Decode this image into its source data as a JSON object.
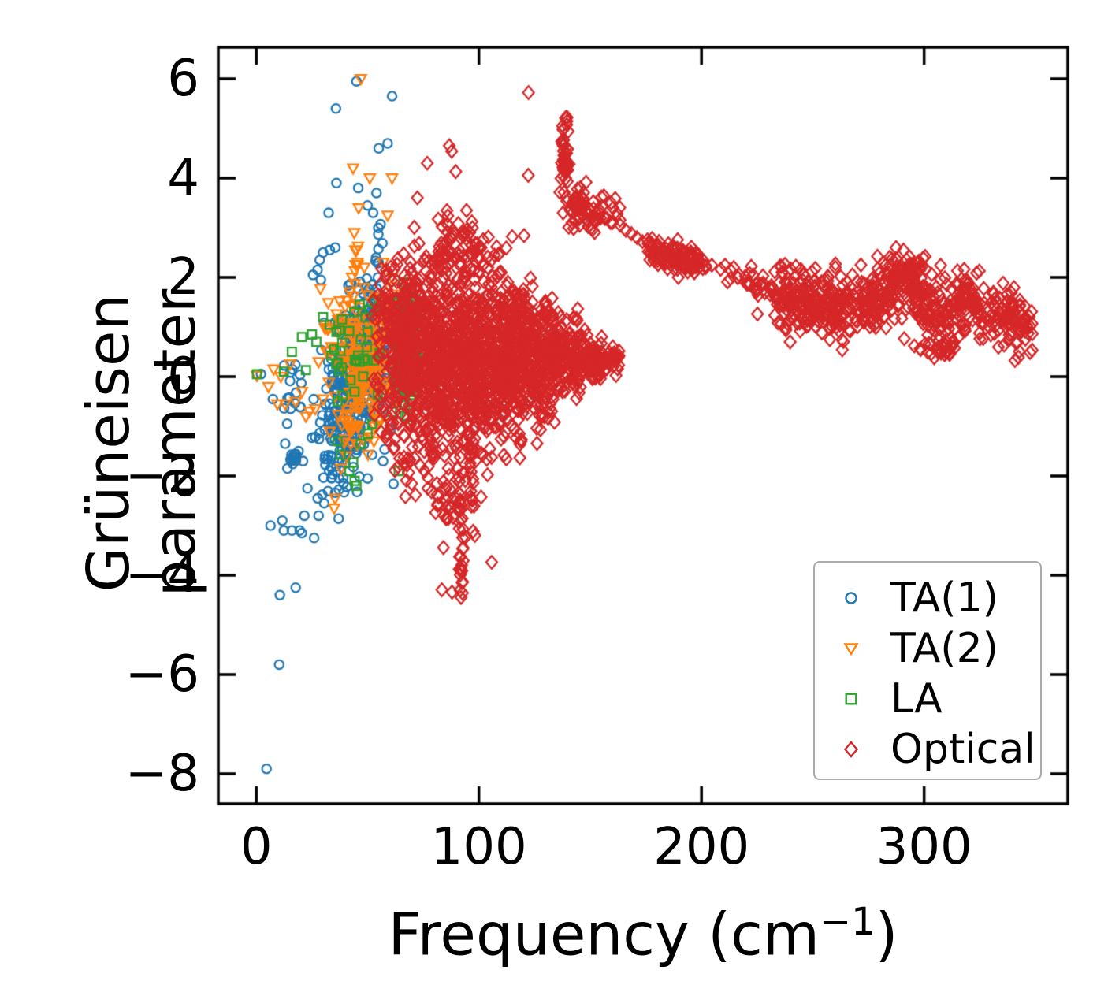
{
  "chart_data": {
    "type": "scatter",
    "title": "",
    "xlabel": "Frequency (cm⁻¹)",
    "xlabel_parts": {
      "prefix": "Frequency (cm",
      "sup": "−1",
      "suffix": ")"
    },
    "ylabel": "Grüneisen parameter",
    "xlim": [
      -17.06,
      364.54
    ],
    "ylim": [
      -8.603,
      6.635
    ],
    "xticks": [
      0,
      100,
      200,
      300
    ],
    "yticks": [
      6,
      4,
      2,
      0,
      -2,
      -4,
      -6,
      -8
    ],
    "xtick_labels": [
      "0",
      "100",
      "200",
      "300"
    ],
    "ytick_labels": [
      "6",
      "4",
      "2",
      "0",
      "−2",
      "−4",
      "−6",
      "−8"
    ],
    "grid": false,
    "tick_direction": "in",
    "spine_color": "#000000",
    "legend": {
      "location": "lower right",
      "border_color": "#aaaaaa",
      "background": "#ffffff"
    },
    "series": [
      {
        "name": "TA(1)",
        "marker": "circle",
        "color": "#1f77b4",
        "points": [
          [
            4.6,
            -7.9
          ],
          [
            10.3,
            -5.8
          ],
          [
            10.6,
            -4.4
          ],
          [
            17.7,
            -4.25
          ],
          [
            6.4,
            -3.0
          ],
          [
            11.7,
            -2.9
          ],
          [
            12.4,
            -3.1
          ],
          [
            16,
            -3.1
          ],
          [
            19.5,
            -3.1
          ],
          [
            20.5,
            -3.15
          ],
          [
            26,
            -3.25
          ],
          [
            21.6,
            -2.8
          ],
          [
            28,
            -2.8
          ],
          [
            23,
            -2.25
          ],
          [
            27.6,
            -2.45
          ],
          [
            30.5,
            -2.55
          ],
          [
            13,
            -1.35
          ],
          [
            19,
            -1.5
          ],
          [
            21,
            -1.7
          ],
          [
            14,
            -1.85
          ],
          [
            27.5,
            2.15
          ],
          [
            28.5,
            2.35
          ],
          [
            30,
            2.5
          ],
          [
            33,
            2.55
          ],
          [
            35.5,
            2.6
          ],
          [
            29,
            1.95
          ],
          [
            25.5,
            2.05
          ],
          [
            36,
            3.9
          ],
          [
            32.5,
            3.3
          ],
          [
            45.8,
            3.8
          ],
          [
            52.5,
            3.3
          ],
          [
            54,
            3.7
          ],
          [
            50,
            3.45
          ],
          [
            59,
            4.7
          ],
          [
            55,
            4.6
          ],
          [
            35.8,
            5.4
          ],
          [
            45,
            5.95
          ],
          [
            61,
            5.65
          ],
          [
            2.1,
            0.05
          ]
        ],
        "clusters": [
          {
            "type": "gauss",
            "n": 240,
            "cx": 42,
            "cy": -0.4,
            "sx": 7.5,
            "sy": 0.75
          },
          {
            "type": "gauss",
            "n": 70,
            "cx": 50,
            "cy": 0.55,
            "sx": 5.5,
            "sy": 0.5
          },
          {
            "type": "gauss",
            "n": 18,
            "cx": 16,
            "cy": -0.55,
            "sx": 4,
            "sy": 0.35
          },
          {
            "type": "gauss",
            "n": 22,
            "cx": 33.5,
            "cy": -1.95,
            "sx": 3.5,
            "sy": 0.3
          },
          {
            "type": "gauss",
            "n": 12,
            "cx": 16.5,
            "cy": -1.62,
            "sx": 0.8,
            "sy": 0.1
          },
          {
            "type": "strip",
            "n": 22,
            "path": [
              [
                51,
                1.2
              ],
              [
                54,
                2.1
              ],
              [
                56.5,
                3.0
              ]
            ],
            "jx": 1.6,
            "jy": 0.12
          },
          {
            "type": "gauss",
            "n": 25,
            "cx": 46,
            "cy": 1.35,
            "sx": 4,
            "sy": 0.35
          }
        ]
      },
      {
        "name": "TA(2)",
        "marker": "triangle-down",
        "color": "#ff7f0e",
        "points": [
          [
            47,
            6.0
          ],
          [
            43.5,
            4.2
          ],
          [
            51,
            4.0
          ],
          [
            61,
            4.0
          ],
          [
            46,
            3.4
          ],
          [
            59,
            3.25
          ],
          [
            44,
            2.9
          ],
          [
            44.5,
            2.55
          ],
          [
            45.5,
            2.3
          ],
          [
            43,
            2.0
          ],
          [
            48.5,
            2.2
          ],
          [
            57,
            2.3
          ],
          [
            61,
            2.0
          ],
          [
            0.3,
            0.02
          ],
          [
            7.8,
            0.15
          ],
          [
            15.2,
            0.25
          ],
          [
            9.5,
            -0.55
          ],
          [
            13,
            -0.55
          ],
          [
            17.7,
            -0.5
          ],
          [
            20.5,
            -0.3
          ],
          [
            22.3,
            -0.8
          ],
          [
            24,
            -0.7
          ],
          [
            26.5,
            -0.65
          ],
          [
            5.5,
            -0.2
          ],
          [
            11,
            0.0
          ],
          [
            35.4,
            -2.45
          ],
          [
            35,
            -2.65
          ],
          [
            38,
            -1.85
          ],
          [
            40.5,
            -1.6
          ],
          [
            42.5,
            -1.35
          ],
          [
            33,
            -1.1
          ],
          [
            28,
            0.3
          ],
          [
            30,
            -0.45
          ],
          [
            31.5,
            0.5
          ]
        ],
        "clusters": [
          {
            "type": "gauss",
            "n": 170,
            "cx": 48.5,
            "cy": 0.2,
            "sx": 6.5,
            "sy": 0.65
          },
          {
            "type": "gauss",
            "n": 22,
            "cx": 60,
            "cy": 1.35,
            "sx": 3,
            "sy": 0.3
          },
          {
            "type": "gauss",
            "n": 14,
            "cx": 41.5,
            "cy": -1.0,
            "sx": 3,
            "sy": 0.25
          },
          {
            "type": "strip",
            "n": 10,
            "path": [
              [
                43.5,
                1.3
              ],
              [
                45.5,
                2.75
              ]
            ],
            "jx": 0.6,
            "jy": 0.1
          },
          {
            "type": "gauss",
            "n": 20,
            "cx": 36,
            "cy": 0.8,
            "sx": 4,
            "sy": 0.45
          }
        ]
      },
      {
        "name": "LA",
        "marker": "square",
        "color": "#2ca02c",
        "points": [
          [
            0.3,
            0.05
          ],
          [
            12.4,
            0.1
          ],
          [
            16,
            0.5
          ],
          [
            20.5,
            0.8
          ],
          [
            22.3,
            0.13
          ],
          [
            25,
            0.85
          ],
          [
            27,
            0.7
          ],
          [
            30,
            1.2
          ],
          [
            33,
            1.05
          ],
          [
            35,
            0.55
          ],
          [
            36,
            0.9
          ],
          [
            38.5,
            1.15
          ],
          [
            41.8,
            0.92
          ],
          [
            44,
            1.3
          ],
          [
            46.5,
            1.45
          ],
          [
            49,
            1.2
          ],
          [
            51,
            1.35
          ],
          [
            53,
            1.5
          ],
          [
            55,
            1.42
          ],
          [
            57,
            1.55
          ],
          [
            47,
            0.75
          ],
          [
            50,
            0.9
          ],
          [
            38,
            -1.57
          ],
          [
            41.8,
            -1.9
          ],
          [
            43.5,
            -1.73
          ],
          [
            44.2,
            -2.1
          ],
          [
            45,
            -2.2
          ],
          [
            64,
            -1.9
          ],
          [
            47,
            -1.35
          ],
          [
            50,
            -1.15
          ],
          [
            36.5,
            -1.3
          ],
          [
            52,
            -0.95
          ],
          [
            66,
            1.9
          ],
          [
            69.5,
            1.78
          ],
          [
            68,
            1.62
          ],
          [
            74,
            1.5
          ],
          [
            75.5,
            0.3
          ],
          [
            75,
            0.55
          ]
        ],
        "clusters": [
          {
            "type": "gauss",
            "n": 210,
            "cx": 67.5,
            "cy": 0.45,
            "sx": 2.4,
            "sy": 0.52
          },
          {
            "type": "gauss",
            "n": 25,
            "cx": 67.5,
            "cy": 1.35,
            "sx": 2.0,
            "sy": 0.22
          },
          {
            "type": "gauss",
            "n": 25,
            "cx": 45,
            "cy": 0.05,
            "sx": 8,
            "sy": 0.4
          }
        ]
      },
      {
        "name": "Optical",
        "marker": "diamond",
        "color": "#d62728",
        "points": [
          [
            76.8,
            4.3
          ],
          [
            86.7,
            4.65
          ],
          [
            87.8,
            4.54
          ],
          [
            89.6,
            4.13
          ],
          [
            101,
            2.6
          ],
          [
            104,
            2.2
          ],
          [
            107,
            2.45
          ],
          [
            110,
            2.1
          ],
          [
            113,
            1.9
          ],
          [
            116,
            1.65
          ],
          [
            120,
            1.75
          ],
          [
            124,
            1.5
          ],
          [
            128,
            1.35
          ],
          [
            133,
            1.25
          ],
          [
            163.5,
            3.05
          ],
          [
            166,
            2.95
          ],
          [
            168.5,
            2.88
          ],
          [
            171,
            2.8
          ],
          [
            173.5,
            2.72
          ],
          [
            176,
            2.68
          ],
          [
            92,
            -3.9
          ],
          [
            92.5,
            -4.15
          ],
          [
            91.5,
            -4.3
          ],
          [
            92,
            -4.45
          ]
        ],
        "clusters": [
          {
            "type": "col",
            "n": 45,
            "x0": 52,
            "x1": 62,
            "cy": 1.1,
            "sy": 0.55
          },
          {
            "type": "col",
            "n": 90,
            "x0": 60,
            "x1": 68,
            "cy": 0.8,
            "sy": 0.6
          },
          {
            "type": "col",
            "n": 220,
            "x0": 66,
            "x1": 78,
            "cy": 0.45,
            "sy": 0.9
          },
          {
            "type": "col",
            "n": 330,
            "x0": 78,
            "x1": 92,
            "cy": 0.3,
            "sy": 1.1
          },
          {
            "type": "col",
            "n": 330,
            "x0": 92,
            "x1": 106,
            "cy": 0.4,
            "sy": 0.95
          },
          {
            "type": "col",
            "n": 280,
            "x0": 106,
            "x1": 120,
            "cy": 0.4,
            "sy": 0.78
          },
          {
            "type": "col",
            "n": 220,
            "x0": 120,
            "x1": 134,
            "cy": 0.42,
            "sy": 0.58
          },
          {
            "type": "col",
            "n": 140,
            "x0": 134,
            "x1": 146,
            "cy": 0.4,
            "sy": 0.4
          },
          {
            "type": "col",
            "n": 70,
            "x0": 146,
            "x1": 156,
            "cy": 0.37,
            "sy": 0.23
          },
          {
            "type": "col",
            "n": 25,
            "x0": 156,
            "x1": 163,
            "cy": 0.35,
            "sy": 0.1
          },
          {
            "type": "col",
            "n": 70,
            "x0": 72,
            "x1": 125,
            "cy": 0.1,
            "sy": 1.85
          },
          {
            "type": "col",
            "n": 50,
            "x0": 78,
            "x1": 102,
            "cy": 2.65,
            "sy": 0.4
          },
          {
            "type": "gauss",
            "n": 35,
            "cx": 60,
            "cy": -0.6,
            "sx": 4,
            "sy": 0.45
          },
          {
            "type": "gauss",
            "n": 30,
            "cx": 72,
            "cy": -1.7,
            "sx": 5,
            "sy": 0.45
          },
          {
            "type": "gauss",
            "n": 15,
            "cx": 86,
            "cy": -2.7,
            "sx": 3,
            "sy": 0.45
          },
          {
            "type": "strip",
            "n": 30,
            "path": [
              [
                90.5,
                -1.9
              ],
              [
                92,
                -3.1
              ],
              [
                92,
                -4.4
              ]
            ],
            "jx": 1.1,
            "jy": 0.12
          },
          {
            "type": "strip",
            "n": 16,
            "path": [
              [
                96.5,
                -1.4
              ],
              [
                97.8,
                -3.3
              ]
            ],
            "jx": 0.9,
            "jy": 0.12
          },
          {
            "type": "gauss",
            "n": 46,
            "cx": 138.5,
            "cy": 4.45,
            "sx": 0.9,
            "sy": 0.36
          },
          {
            "type": "gauss",
            "n": 60,
            "cx": 150,
            "cy": 3.3,
            "sx": 5.5,
            "sy": 0.22
          },
          {
            "type": "gauss",
            "n": 18,
            "cx": 143,
            "cy": 3.55,
            "sx": 2.5,
            "sy": 0.18
          },
          {
            "type": "strip",
            "n": 60,
            "path": [
              [
                177,
                2.6
              ],
              [
                186,
                2.48
              ],
              [
                196,
                2.35
              ]
            ],
            "jx": 2,
            "jy": 0.1
          },
          {
            "type": "strip",
            "n": 45,
            "path": [
              [
                196,
                2.35
              ],
              [
                206,
                2.2
              ],
              [
                216,
                2.02
              ],
              [
                226,
                1.88
              ],
              [
                233,
                1.65
              ]
            ],
            "jx": 2,
            "jy": 0.1
          },
          {
            "type": "gauss",
            "n": 45,
            "cx": 190,
            "cy": 2.35,
            "sx": 5.5,
            "sy": 0.17
          },
          {
            "type": "strip",
            "n": 520,
            "path": [
              [
                233,
                1.62
              ],
              [
                240,
                1.48
              ],
              [
                248,
                1.58
              ],
              [
                255,
                1.38
              ],
              [
                262,
                1.52
              ],
              [
                270,
                1.38
              ],
              [
                278,
                1.5
              ],
              [
                285,
                1.75
              ],
              [
                292,
                2.0
              ],
              [
                298,
                1.62
              ],
              [
                305,
                1.15
              ],
              [
                312,
                1.35
              ],
              [
                318,
                1.55
              ],
              [
                325,
                1.32
              ],
              [
                332,
                1.22
              ],
              [
                340,
                1.12
              ],
              [
                347,
                1.02
              ]
            ],
            "jx": 3.2,
            "jy": 0.33
          },
          {
            "type": "gauss",
            "n": 40,
            "cx": 292,
            "cy": 2.15,
            "sx": 5,
            "sy": 0.16
          },
          {
            "type": "gauss",
            "n": 25,
            "cx": 306,
            "cy": 0.6,
            "sx": 4,
            "sy": 0.14
          },
          {
            "type": "gauss",
            "n": 70,
            "cx": 245,
            "cy": 1.68,
            "sx": 6,
            "sy": 0.28
          },
          {
            "type": "gauss",
            "n": 45,
            "cx": 261,
            "cy": 1.25,
            "sx": 5,
            "sy": 0.22
          },
          {
            "type": "strip",
            "n": 18,
            "path": [
              [
                342,
                1.08
              ],
              [
                348,
                1.0
              ]
            ],
            "jx": 2,
            "jy": 0.1
          }
        ]
      }
    ]
  }
}
